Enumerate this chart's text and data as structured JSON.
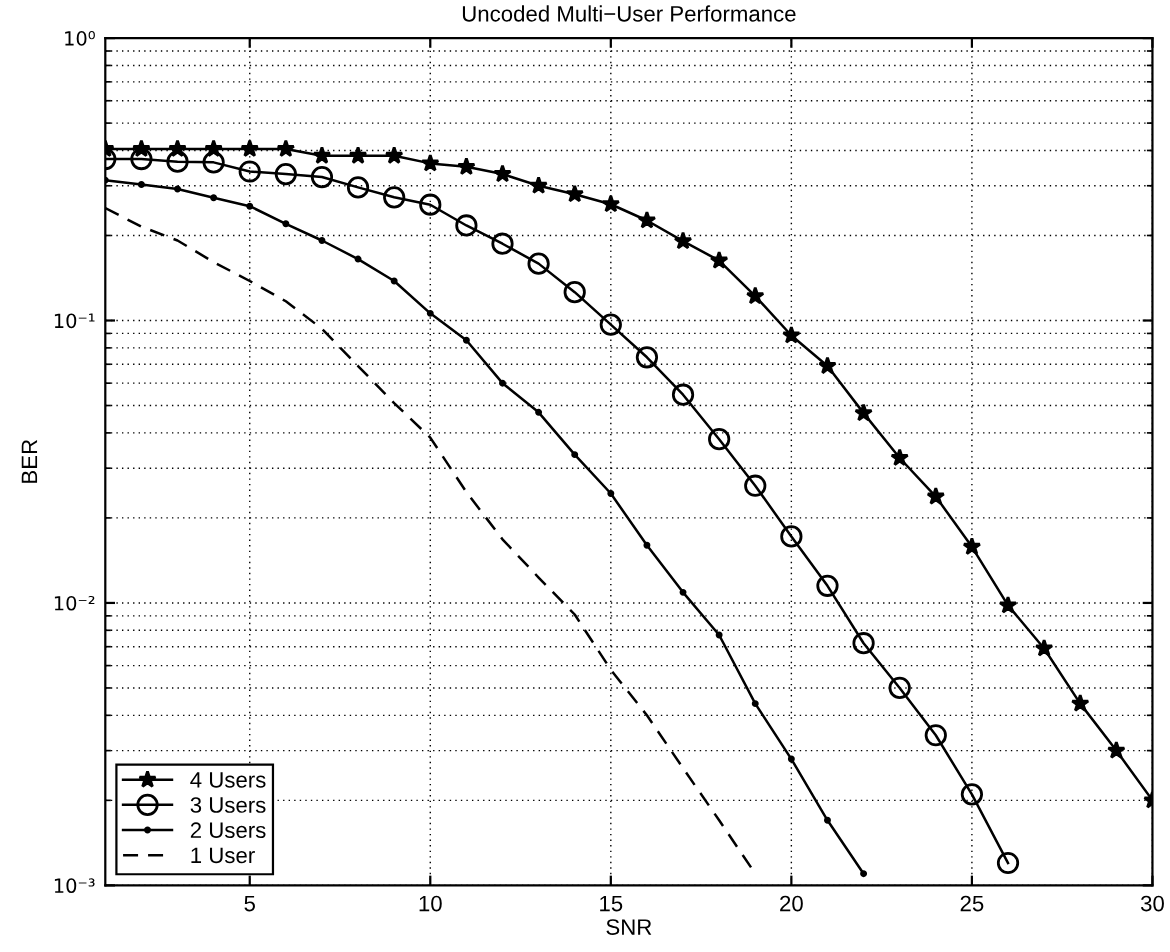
{
  "chart_data": {
    "type": "line",
    "title": "Uncoded Multi−User Performance",
    "xlabel": "SNR",
    "ylabel": "BER",
    "log": "y",
    "grid": true,
    "legend": "bottom left",
    "xlim": [
      1,
      30
    ],
    "xticks": [
      5,
      10,
      15,
      20,
      25,
      30
    ],
    "ylim": [
      0.001,
      1
    ],
    "yticks": [
      {
        "value": 0.001,
        "label": "10⁻³"
      },
      {
        "value": 0.01,
        "label": "10⁻²"
      },
      {
        "value": 0.1,
        "label": "10⁻¹"
      },
      {
        "value": 1,
        "label": "10⁰"
      }
    ],
    "series": [
      {
        "name": "4 Users",
        "color": "#000000",
        "marker": "star",
        "line_style": "solid",
        "x": [
          1,
          2,
          3,
          4,
          5,
          6,
          7,
          8,
          9,
          10,
          11,
          12,
          13,
          14,
          15,
          16,
          17,
          18,
          19,
          20,
          21,
          22,
          23,
          24,
          25,
          26,
          27,
          28,
          29,
          30
        ],
        "values": [
          0.405,
          0.405,
          0.405,
          0.405,
          0.405,
          0.405,
          0.383,
          0.383,
          0.383,
          0.36,
          0.35,
          0.33,
          0.3,
          0.28,
          0.258,
          0.226,
          0.191,
          0.163,
          0.122,
          0.0885,
          0.069,
          0.047,
          0.0326,
          0.0238,
          0.0158,
          0.0098,
          0.0069,
          0.0044,
          0.003,
          0.002
        ]
      },
      {
        "name": "3 Users",
        "color": "#000000",
        "marker": "circle",
        "line_style": "solid",
        "x": [
          1,
          2,
          3,
          4,
          5,
          6,
          7,
          8,
          9,
          10,
          11,
          12,
          13,
          14,
          15,
          16,
          17,
          18,
          19,
          20,
          21,
          22,
          23,
          24,
          25,
          26
        ],
        "values": [
          0.373,
          0.373,
          0.365,
          0.363,
          0.337,
          0.33,
          0.322,
          0.296,
          0.273,
          0.257,
          0.217,
          0.187,
          0.159,
          0.126,
          0.0967,
          0.0741,
          0.0546,
          0.038,
          0.026,
          0.0172,
          0.0115,
          0.0072,
          0.005,
          0.0034,
          0.0021,
          0.0012
        ]
      },
      {
        "name": "2 Users",
        "color": "#000000",
        "marker": "dot",
        "line_style": "solid",
        "x": [
          1,
          2,
          3,
          4,
          5,
          6,
          7,
          8,
          9,
          10,
          11,
          12,
          13,
          14,
          15,
          16,
          17,
          18,
          19,
          20,
          21,
          22
        ],
        "values": [
          0.314,
          0.303,
          0.292,
          0.272,
          0.254,
          0.22,
          0.192,
          0.165,
          0.138,
          0.106,
          0.0851,
          0.06,
          0.0473,
          0.0335,
          0.0244,
          0.016,
          0.0109,
          0.0077,
          0.0044,
          0.0028,
          0.0017,
          0.0011
        ]
      },
      {
        "name": "1 User",
        "color": "#000000",
        "marker": "none",
        "line_style": "dashed",
        "x": [
          1,
          2,
          3,
          4,
          5,
          6,
          7,
          8,
          9,
          10,
          11,
          12,
          13,
          14,
          15,
          16,
          17,
          18,
          19
        ],
        "values": [
          0.25,
          0.215,
          0.192,
          0.161,
          0.138,
          0.117,
          0.0935,
          0.069,
          0.051,
          0.0385,
          0.0247,
          0.0168,
          0.0123,
          0.0091,
          0.0058,
          0.004,
          0.0026,
          0.0017,
          0.0011
        ]
      }
    ]
  }
}
